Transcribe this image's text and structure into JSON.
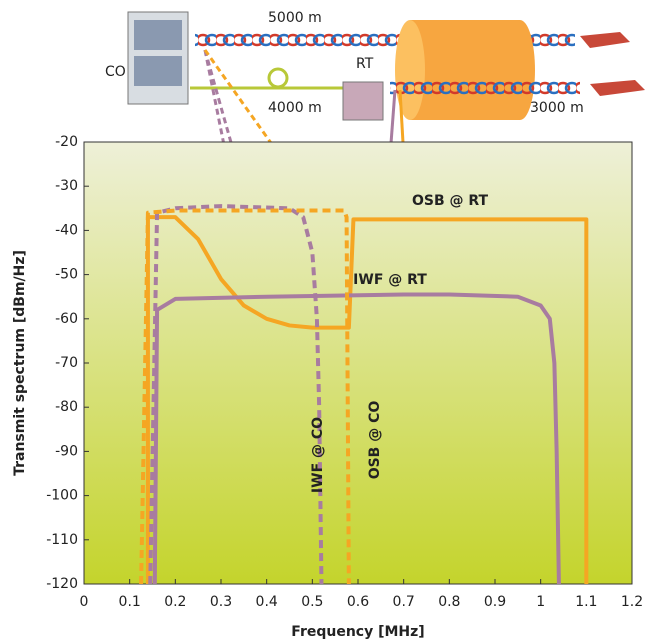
{
  "diagram": {
    "co": "CO",
    "rt": "RT",
    "cable_top": "5000 m",
    "cable_co_rt": "4000 m",
    "cable_rt": "3000 m"
  },
  "chart_data": {
    "type": "line",
    "xlabel": "Frequency [MHz]",
    "ylabel": "Transmit spectrum [dBm/Hz]",
    "xlim": [
      0,
      1.2
    ],
    "ylim": [
      -120,
      -20
    ],
    "xticks": [
      0,
      0.1,
      0.2,
      0.3,
      0.4,
      0.5,
      0.6,
      0.7,
      0.8,
      0.9,
      1,
      1.1,
      1.2
    ],
    "yticks": [
      -20,
      -30,
      -40,
      -50,
      -60,
      -70,
      -80,
      -90,
      -100,
      -110,
      -120
    ],
    "series": [
      {
        "name": "OSB @ RT",
        "color": "#f5a623",
        "dash": false,
        "x": [
          0.14,
          0.14,
          0.2,
          0.25,
          0.3,
          0.35,
          0.4,
          0.45,
          0.5,
          0.58,
          0.59,
          1.1,
          1.1
        ],
        "values": [
          -120,
          -37,
          -37,
          -42,
          -51,
          -57,
          -60,
          -61.5,
          -62,
          -62,
          -37.5,
          -37.5,
          -120
        ]
      },
      {
        "name": "IWF @ RT",
        "color": "#a87ca0",
        "dash": false,
        "x": [
          0.155,
          0.16,
          0.2,
          0.4,
          0.7,
          0.8,
          0.95,
          1.0,
          1.02,
          1.03,
          1.035,
          1.04
        ],
        "values": [
          -120,
          -58,
          -55.5,
          -55,
          -54.5,
          -54.5,
          -55,
          -57,
          -60,
          -70,
          -90,
          -120
        ]
      },
      {
        "name": "IWF @ CO",
        "color": "#a87ca0",
        "dash": true,
        "x": [
          0.145,
          0.16,
          0.2,
          0.3,
          0.45,
          0.48,
          0.5,
          0.51,
          0.515,
          0.52
        ],
        "values": [
          -120,
          -36,
          -35,
          -34.5,
          -35,
          -37,
          -45,
          -60,
          -80,
          -120
        ]
      },
      {
        "name": "OSB @ CO",
        "color": "#f5a623",
        "dash": true,
        "x": [
          0.125,
          0.14,
          0.2,
          0.57,
          0.575,
          0.58
        ],
        "values": [
          -120,
          -36,
          -35.5,
          -35.5,
          -37,
          -120
        ]
      }
    ]
  }
}
